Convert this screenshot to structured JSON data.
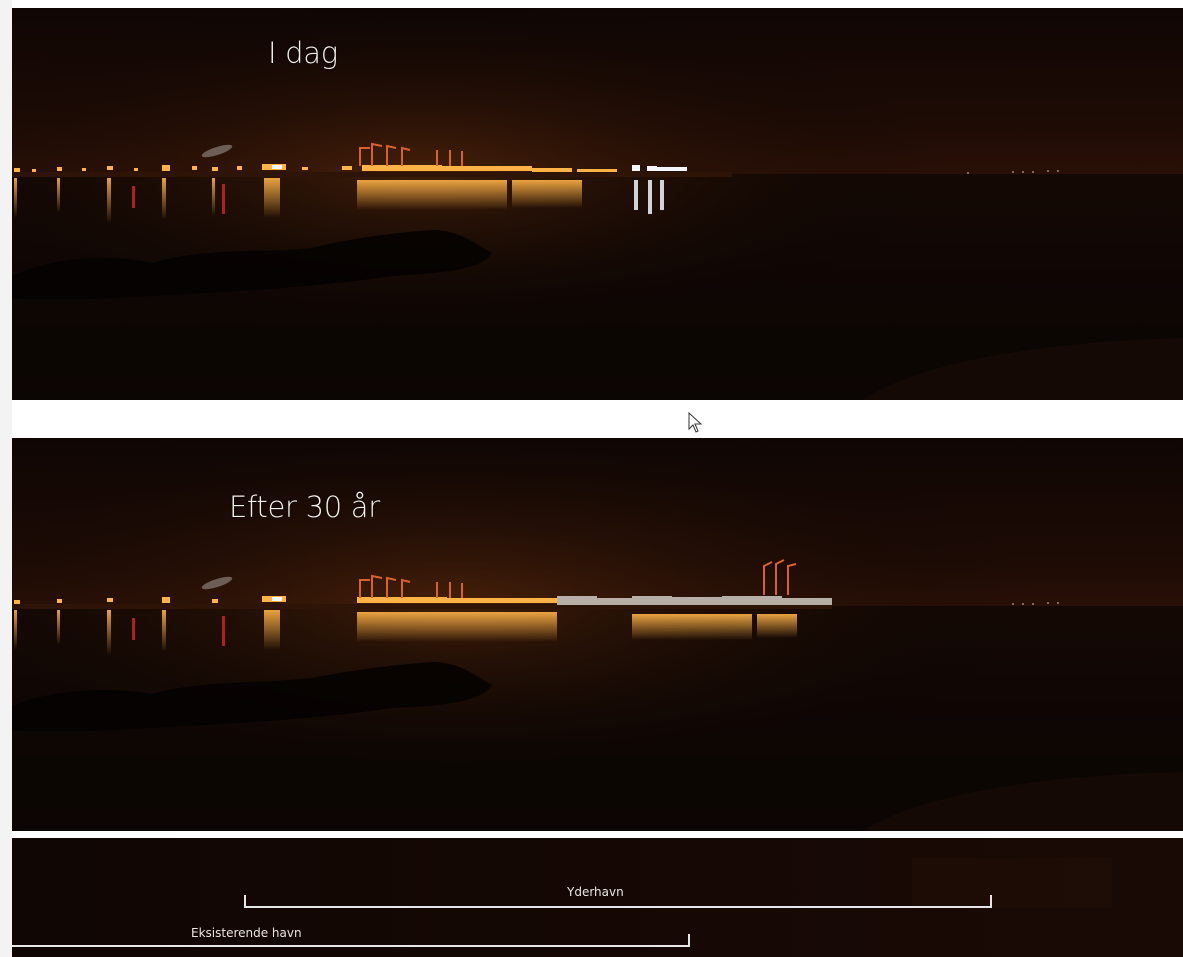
{
  "panels": {
    "today": {
      "caption": "I dag"
    },
    "future": {
      "caption": "Efter 30 år"
    }
  },
  "legend": {
    "outer_harbour": "Yderhavn",
    "existing_harbour": "Eksisterende havn"
  },
  "colors": {
    "sky": "#150805",
    "water": "#0b0503",
    "light_orange": "#ffb347",
    "light_white": "#f4f6ff",
    "crane": "#d9622b",
    "legend_line": "#e6e6e6"
  },
  "icons": {
    "cursor": "mouse-pointer-icon"
  }
}
